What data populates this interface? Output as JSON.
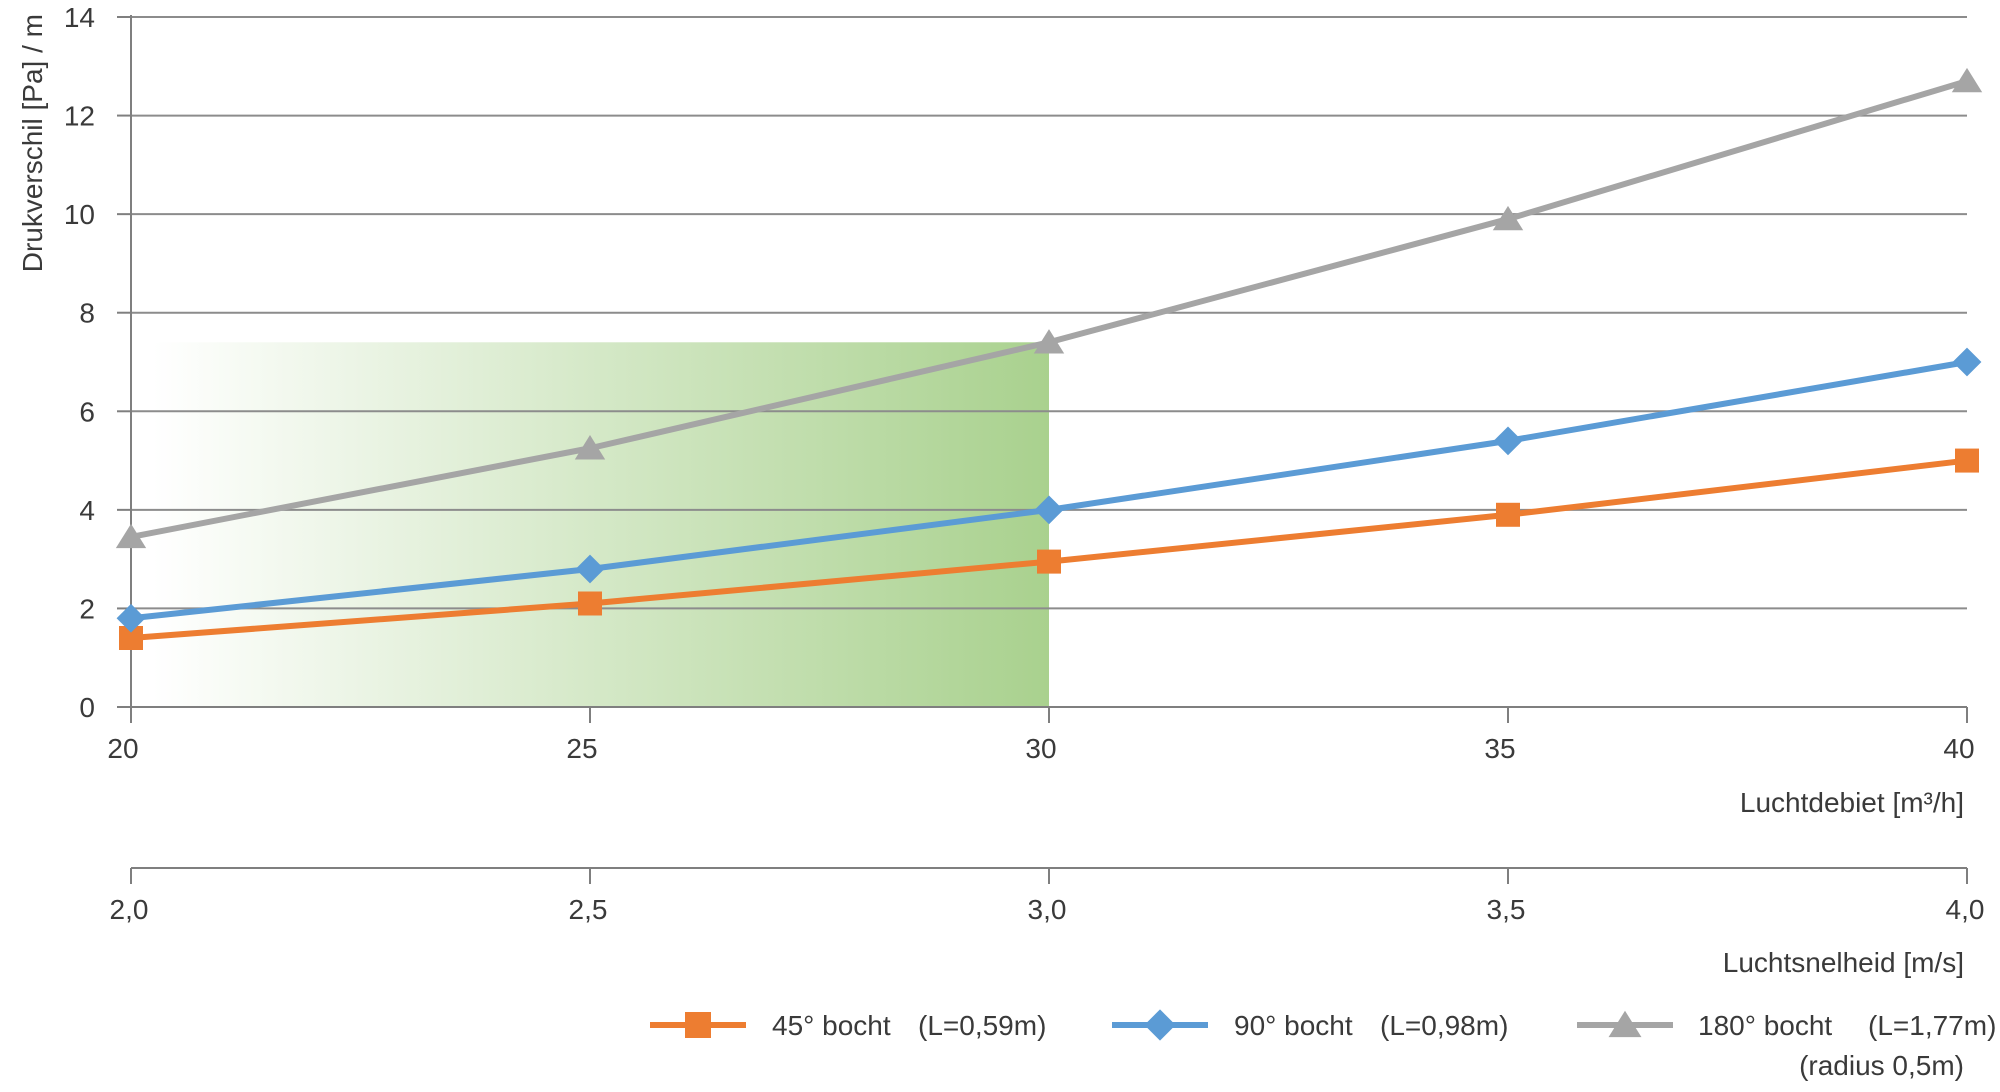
{
  "chart_data": {
    "type": "line",
    "ylabel": "Drukverschil [Pa] / m",
    "y_ticks": [
      "0",
      "2",
      "4",
      "6",
      "8",
      "10",
      "12",
      "14"
    ],
    "ylim": [
      0,
      14
    ],
    "xlabel": "Luchtdebiet [m³/h]",
    "x_ticks": [
      "20",
      "25",
      "30",
      "35",
      "40"
    ],
    "x": [
      20,
      25,
      30,
      35,
      40
    ],
    "xlim": [
      20,
      40
    ],
    "secondary_xlabel": "Luchtsnelheid [m/s]",
    "secondary_x_ticks": [
      "2,0",
      "2,5",
      "3,0",
      "3,5",
      "4,0"
    ],
    "secondary_x": [
      2.0,
      2.5,
      3.0,
      3.5,
      4.0
    ],
    "grid": true,
    "legend_position": "bottom-right",
    "highlight_region": {
      "x_range": [
        20,
        30
      ],
      "y_range": [
        0,
        7.4
      ],
      "color": "#a9d18e"
    },
    "series": [
      {
        "name": "45° bocht",
        "detail": "(L=0,59m)",
        "detail2": "",
        "color": "#ed7d31",
        "marker": "square",
        "values": [
          1.4,
          2.1,
          2.95,
          3.9,
          5.0
        ]
      },
      {
        "name": "90° bocht",
        "detail": "(L=0,98m)",
        "detail2": "",
        "color": "#5b9bd5",
        "marker": "diamond",
        "values": [
          1.8,
          2.8,
          4.0,
          5.4,
          7.0
        ]
      },
      {
        "name": "180° bocht",
        "detail": "(L=1,77m)",
        "detail2": "(radius 0,5m)",
        "color": "#a5a5a5",
        "marker": "triangle",
        "values": [
          3.45,
          5.25,
          7.4,
          9.9,
          12.7
        ]
      }
    ]
  }
}
